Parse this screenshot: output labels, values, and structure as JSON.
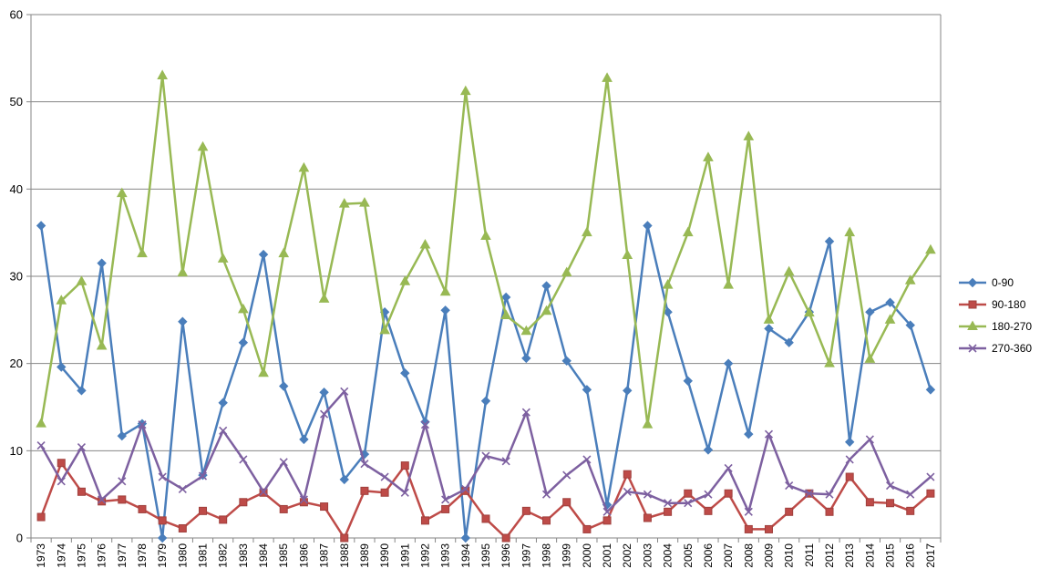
{
  "chart_data": {
    "type": "line",
    "title": "",
    "xlabel": "",
    "ylabel": "",
    "ylim": [
      0,
      60
    ],
    "yticks": [
      0,
      10,
      20,
      30,
      40,
      50,
      60
    ],
    "grid": "horizontal",
    "legend_position": "right",
    "categories": [
      "1973",
      "1974",
      "1975",
      "1976",
      "1977",
      "1978",
      "1979",
      "1980",
      "1981",
      "1982",
      "1983",
      "1984",
      "1985",
      "1986",
      "1987",
      "1988",
      "1989",
      "1990",
      "1991",
      "1992",
      "1993",
      "1994",
      "1995",
      "1996",
      "1997",
      "1998",
      "1999",
      "2000",
      "2001",
      "2002",
      "2003",
      "2004",
      "2005",
      "2006",
      "2007",
      "2008",
      "2009",
      "2010",
      "2011",
      "2012",
      "2013",
      "2014",
      "2015",
      "2016",
      "2017"
    ],
    "series": [
      {
        "name": "0-90",
        "color": "#4a7ebb",
        "marker": "diamond",
        "values": [
          35.8,
          19.6,
          16.9,
          31.5,
          11.7,
          13.1,
          0,
          24.8,
          7.2,
          15.5,
          22.4,
          32.5,
          17.4,
          11.3,
          16.7,
          6.7,
          9.6,
          25.9,
          18.9,
          13.3,
          26.1,
          0,
          15.7,
          27.6,
          20.6,
          28.9,
          20.3,
          17.0,
          3.8,
          16.9,
          35.8,
          25.9,
          18.0,
          10.1,
          20.0,
          11.9,
          24.0,
          22.4,
          25.9,
          34.0,
          11.0,
          25.9,
          27.0,
          24.4,
          17.0
        ]
      },
      {
        "name": "90-180",
        "color": "#be4b48",
        "marker": "square",
        "values": [
          2.4,
          8.6,
          5.3,
          4.2,
          4.4,
          3.3,
          2.0,
          1.1,
          3.1,
          2.1,
          4.1,
          5.2,
          3.3,
          4.1,
          3.6,
          0,
          5.4,
          5.2,
          8.3,
          2.0,
          3.3,
          5.4,
          2.2,
          0,
          3.1,
          2.0,
          4.1,
          1.0,
          2.0,
          7.3,
          2.3,
          3.0,
          5.1,
          3.1,
          5.1,
          1.0,
          1.0,
          3.0,
          5.1,
          3.0,
          7.0,
          4.1,
          4.0,
          3.1,
          5.1
        ]
      },
      {
        "name": "180-270",
        "color": "#98b954",
        "marker": "triangle",
        "values": [
          13.1,
          27.2,
          29.4,
          22.0,
          39.5,
          32.6,
          53.0,
          30.4,
          44.8,
          32.0,
          26.2,
          18.9,
          32.6,
          42.4,
          27.4,
          38.3,
          38.4,
          23.8,
          29.4,
          33.6,
          28.2,
          51.2,
          34.6,
          25.5,
          23.7,
          26.0,
          30.4,
          35.0,
          52.7,
          32.4,
          13.0,
          29.0,
          35.0,
          43.6,
          29.0,
          46.0,
          25.0,
          30.5,
          25.8,
          20.0,
          35.0,
          20.5,
          25.0,
          29.5,
          33.0
        ]
      },
      {
        "name": "270-360",
        "color": "#7d60a0",
        "marker": "x",
        "values": [
          10.6,
          6.5,
          10.4,
          4.4,
          6.5,
          13.0,
          7.0,
          5.6,
          7.1,
          12.3,
          9.0,
          5.3,
          8.7,
          4.4,
          14.2,
          16.8,
          8.5,
          7.0,
          5.2,
          13.0,
          4.4,
          5.6,
          9.4,
          8.8,
          14.4,
          5.0,
          7.2,
          9.0,
          3.0,
          5.3,
          5.0,
          4.0,
          4.0,
          5.0,
          8.0,
          3.0,
          11.9,
          6.0,
          5.1,
          5.0,
          9.0,
          11.3,
          6.0,
          5.0,
          7.0
        ]
      }
    ]
  }
}
